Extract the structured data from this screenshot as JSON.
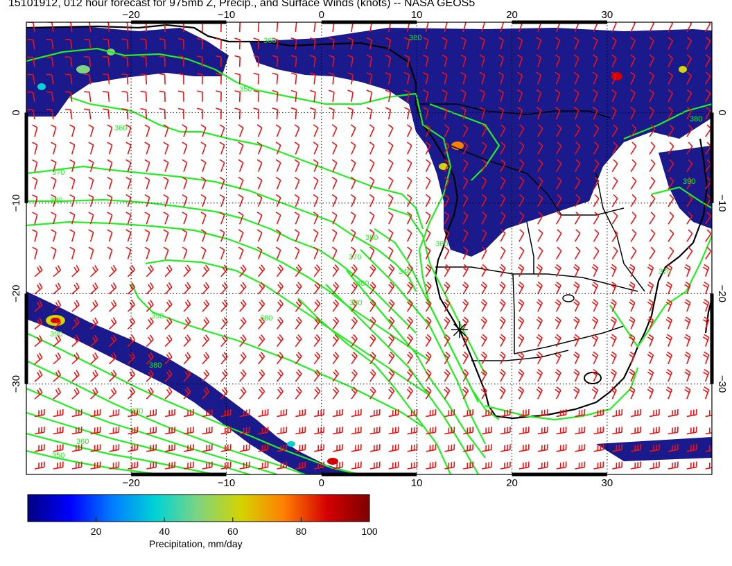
{
  "title": "15101912, 012 hour forecast for 975mb Z, Precip., and Surface Winds (knots) -- NASA GEOS5",
  "map": {
    "lon_range": [
      -31,
      41
    ],
    "lat_range": [
      -40,
      10
    ],
    "lon_ticks": [
      "−20",
      "−10",
      "0",
      "10",
      "20",
      "30"
    ],
    "lon_tick_values": [
      -20,
      -10,
      0,
      10,
      20,
      30
    ],
    "lat_ticks": [
      "0",
      "−10",
      "−20",
      "−30"
    ],
    "lat_tick_values": [
      0,
      -10,
      -20,
      -30
    ],
    "contour_color": "#22ee22",
    "barb_color": "#ee1111",
    "precip_base_color": "#1a1a8c",
    "contour_labels": [
      "360",
      "380",
      "350",
      "360",
      "370",
      "380",
      "360",
      "370",
      "380",
      "390",
      "390",
      "380",
      "390",
      "380",
      "370",
      "360",
      "350",
      "340",
      "360",
      "370",
      "380",
      "390"
    ],
    "marker": {
      "lon": 14.5,
      "lat": -24,
      "symbol": "asterisk"
    }
  },
  "colorbar": {
    "title": "Precipitation, mm/day",
    "min": 0,
    "max": 100,
    "ticks": [
      "20",
      "40",
      "60",
      "80",
      "100"
    ],
    "tick_values": [
      20,
      40,
      60,
      80,
      100
    ],
    "colors": [
      "#00007f",
      "#0000ff",
      "#007fff",
      "#00d4d4",
      "#7fd47f",
      "#d4d400",
      "#ff7f00",
      "#d40000",
      "#7f0000"
    ]
  }
}
